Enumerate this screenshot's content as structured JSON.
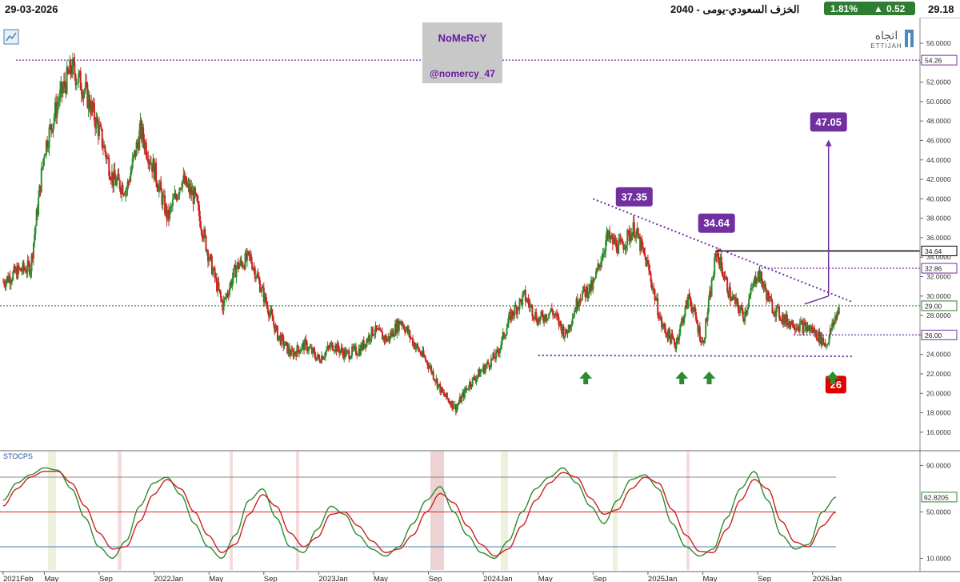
{
  "header": {
    "date": "29-03-2026",
    "title": "الخزف السعودي-يومى - 2040",
    "change_pct": "1.81%",
    "change_abs": "0.52",
    "last_price": "29.18"
  },
  "watermark": {
    "line1": "NoMeRcY",
    "line2": "@nomercy_47"
  },
  "logo": {
    "arabic": "اتجاه",
    "latin": "ETTIJAH"
  },
  "colors": {
    "up_candle": "#2e8b2e",
    "down_candle": "#cc2222",
    "purple": "#7030a0",
    "resistance_line": "#000000",
    "stoch_k": "#2e8b2e",
    "stoch_d": "#cc2222",
    "level_green": "#2e7d32",
    "red_box": "#e00000"
  },
  "chart_data": [
    {
      "type": "candlestick",
      "title": "",
      "ylim": [
        15,
        56
      ],
      "y_ticks": [
        "56.0000",
        "54.0000",
        "52.0000",
        "50.0000",
        "48.0000",
        "46.0000",
        "44.0000",
        "42.0000",
        "40.0000",
        "38.0000",
        "36.0000",
        "34.0000",
        "32.0000",
        "30.0000",
        "28.0000",
        "26.0000",
        "24.0000",
        "22.0000",
        "20.0000",
        "18.0000",
        "16.0000"
      ],
      "x_ticks": [
        "2021Feb",
        "May",
        "Sep",
        "2022Jan",
        "May",
        "Sep",
        "2023Jan",
        "May",
        "Sep",
        "2024Jan",
        "May",
        "Sep",
        "2025Jan",
        "May",
        "Sep",
        "2026Jan"
      ],
      "x_range": [
        "2021-02",
        "2026-03"
      ],
      "price_path": [
        {
          "date": "2021-02",
          "value": 31.5
        },
        {
          "date": "2021-03",
          "value": 32.5
        },
        {
          "date": "2021-04",
          "value": 33.0
        },
        {
          "date": "2021-05",
          "value": 45.0
        },
        {
          "date": "2021-06",
          "value": 50.0
        },
        {
          "date": "2021-07",
          "value": 53.5
        },
        {
          "date": "2021-08",
          "value": 51.0
        },
        {
          "date": "2021-09",
          "value": 47.0
        },
        {
          "date": "2021-10",
          "value": 42.0
        },
        {
          "date": "2021-11",
          "value": 41.0
        },
        {
          "date": "2021-12",
          "value": 47.0
        },
        {
          "date": "2022-01",
          "value": 43.0
        },
        {
          "date": "2022-02",
          "value": 38.0
        },
        {
          "date": "2022-03",
          "value": 42.0
        },
        {
          "date": "2022-04",
          "value": 40.0
        },
        {
          "date": "2022-05",
          "value": 34.0
        },
        {
          "date": "2022-06",
          "value": 29.0
        },
        {
          "date": "2022-07",
          "value": 33.0
        },
        {
          "date": "2022-08",
          "value": 34.0
        },
        {
          "date": "2022-09",
          "value": 30.0
        },
        {
          "date": "2022-10",
          "value": 26.0
        },
        {
          "date": "2022-11",
          "value": 24.0
        },
        {
          "date": "2022-12",
          "value": 25.0
        },
        {
          "date": "2023-01",
          "value": 23.5
        },
        {
          "date": "2023-02",
          "value": 25.0
        },
        {
          "date": "2023-03",
          "value": 24.0
        },
        {
          "date": "2023-04",
          "value": 24.5
        },
        {
          "date": "2023-05",
          "value": 26.5
        },
        {
          "date": "2023-06",
          "value": 25.5
        },
        {
          "date": "2023-07",
          "value": 27.5
        },
        {
          "date": "2023-08",
          "value": 25.0
        },
        {
          "date": "2023-09",
          "value": 23.0
        },
        {
          "date": "2023-10",
          "value": 20.0
        },
        {
          "date": "2023-11",
          "value": 18.5
        },
        {
          "date": "2023-12",
          "value": 21.0
        },
        {
          "date": "2024-01",
          "value": 22.5
        },
        {
          "date": "2024-02",
          "value": 24.0
        },
        {
          "date": "2024-03",
          "value": 28.0
        },
        {
          "date": "2024-04",
          "value": 30.0
        },
        {
          "date": "2024-05",
          "value": 27.5
        },
        {
          "date": "2024-06",
          "value": 28.5
        },
        {
          "date": "2024-07",
          "value": 26.0
        },
        {
          "date": "2024-08",
          "value": 30.0
        },
        {
          "date": "2024-09",
          "value": 31.0
        },
        {
          "date": "2024-10",
          "value": 36.0
        },
        {
          "date": "2024-11",
          "value": 35.0
        },
        {
          "date": "2024-12",
          "value": 37.0
        },
        {
          "date": "2025-01",
          "value": 33.0
        },
        {
          "date": "2025-02",
          "value": 27.0
        },
        {
          "date": "2025-03",
          "value": 25.0
        },
        {
          "date": "2025-04",
          "value": 30.0
        },
        {
          "date": "2025-05",
          "value": 25.0
        },
        {
          "date": "2025-06",
          "value": 34.6
        },
        {
          "date": "2025-07",
          "value": 30.0
        },
        {
          "date": "2025-08",
          "value": 28.0
        },
        {
          "date": "2025-09",
          "value": 32.5
        },
        {
          "date": "2025-10",
          "value": 29.0
        },
        {
          "date": "2025-11",
          "value": 27.5
        },
        {
          "date": "2025-12",
          "value": 27.0
        },
        {
          "date": "2026-01",
          "value": 26.5
        },
        {
          "date": "2026-02",
          "value": 25.0
        },
        {
          "date": "2026-03",
          "value": 29.2
        }
      ],
      "price_labels": [
        {
          "value": 54.26,
          "text": "54.26",
          "color": "#7030a0",
          "kind": "dotted"
        },
        {
          "value": 34.64,
          "text": "34.64",
          "color": "#000000",
          "kind": "solid"
        },
        {
          "value": 32.86,
          "text": "32.86",
          "color": "#7030a0",
          "kind": "dotted"
        },
        {
          "value": 29.0,
          "text": "29.00",
          "color": "#2e7d32",
          "kind": "dotted"
        },
        {
          "value": 26.0,
          "text": "26.00",
          "color": "#7030a0",
          "kind": "dotted"
        }
      ],
      "trendlines": [
        {
          "name": "descending-resistance",
          "from": {
            "date": "2024-09",
            "value": 40.0
          },
          "to": {
            "date": "2026-03",
            "value": 29.4
          },
          "style": "dotted"
        },
        {
          "name": "support",
          "from": {
            "date": "2024-05",
            "value": 23.9
          },
          "to": {
            "date": "2026-03",
            "value": 23.8
          },
          "style": "dotted"
        }
      ],
      "annotations": [
        {
          "text": "37.35",
          "date": "2024-12",
          "value": 37.35,
          "kind": "box"
        },
        {
          "text": "34.64",
          "date": "2025-06",
          "value": 34.64,
          "kind": "box"
        },
        {
          "text": "47.05",
          "date": "2026-01",
          "value": 47.05,
          "kind": "box"
        },
        {
          "text": "26",
          "date": "2026-02",
          "value": 26,
          "kind": "red-box"
        }
      ],
      "target_arrow": {
        "from": {
          "date": "2026-01",
          "value": 30.0
        },
        "to": {
          "date": "2026-01",
          "value": 45.9
        }
      },
      "up_arrows": [
        "2024-08",
        "2025-03",
        "2025-05",
        "2026-02"
      ]
    },
    {
      "type": "line",
      "title": "STOCPS",
      "ylim": [
        0,
        100
      ],
      "y_ticks": [
        "90.0000",
        "50.0000",
        "10.0000"
      ],
      "last_value_label": "62.8205",
      "levels": [
        80,
        50,
        20
      ],
      "series": [
        {
          "name": "",
          "values": [
            60,
            75,
            82,
            88,
            86,
            70,
            45,
            20,
            10,
            25,
            55,
            75,
            80,
            65,
            40,
            20,
            10,
            30,
            60,
            70,
            45,
            20,
            15,
            35,
            55,
            48,
            30,
            18,
            12,
            20,
            40,
            60,
            72,
            50,
            30,
            15,
            10,
            25,
            50,
            70,
            80,
            88,
            75,
            55,
            40,
            60,
            78,
            82,
            70,
            40,
            20,
            12,
            18,
            45,
            70,
            85,
            60,
            30,
            18,
            22,
            50,
            62.8
          ]
        },
        {
          "name": "",
          "values": [
            55,
            70,
            80,
            85,
            85,
            75,
            55,
            32,
            18,
            20,
            42,
            65,
            78,
            70,
            50,
            30,
            15,
            22,
            48,
            65,
            55,
            32,
            20,
            28,
            48,
            50,
            38,
            25,
            15,
            18,
            30,
            50,
            66,
            58,
            38,
            22,
            12,
            18,
            38,
            60,
            75,
            84,
            80,
            62,
            48,
            52,
            70,
            80,
            75,
            52,
            30,
            16,
            15,
            35,
            60,
            78,
            70,
            42,
            24,
            20,
            38,
            50
          ]
        }
      ]
    }
  ]
}
